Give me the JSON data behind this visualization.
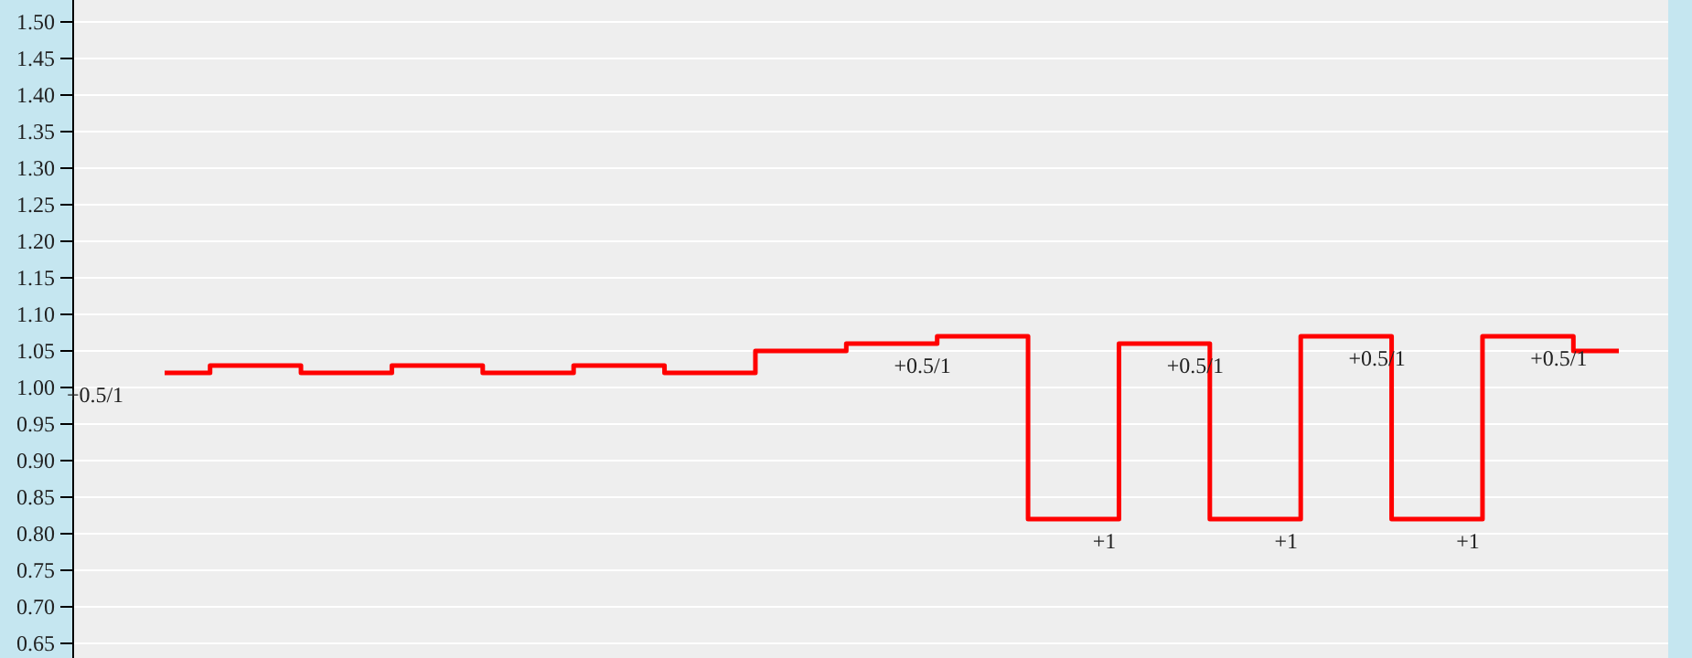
{
  "chart_data": {
    "type": "step",
    "categories": [
      null,
      null,
      null,
      null,
      null,
      null,
      null,
      null,
      null,
      null,
      null,
      null,
      null,
      null,
      null,
      null,
      null
    ],
    "series": [
      {
        "color": "#ff0000",
        "values": [
          1.02,
          1.03,
          1.02,
          1.03,
          1.02,
          1.03,
          1.02,
          1.05,
          1.06,
          1.07,
          0.82,
          1.06,
          0.82,
          1.07,
          0.82,
          1.07,
          1.05
        ],
        "value_labels": [
          "+0.5/1",
          null,
          null,
          null,
          null,
          null,
          null,
          null,
          "+0.5/1",
          null,
          "+1",
          "+0.5/1",
          "+1",
          "+0.5/1",
          "+1",
          "+0.5/1",
          null
        ]
      }
    ],
    "ylim": [
      0.63,
      1.53
    ],
    "yticks": [
      {
        "value": 0.65,
        "label": "0.65"
      },
      {
        "value": 0.7,
        "label": "0.70"
      },
      {
        "value": 0.75,
        "label": "0.75"
      },
      {
        "value": 0.8,
        "label": "0.80"
      },
      {
        "value": 0.85,
        "label": "0.85"
      },
      {
        "value": 0.9,
        "label": "0.90"
      },
      {
        "value": 0.95,
        "label": "0.95"
      },
      {
        "value": 1.0,
        "label": "1.00"
      },
      {
        "value": 1.05,
        "label": "1.05"
      },
      {
        "value": 1.1,
        "label": "1.10"
      },
      {
        "value": 1.15,
        "label": "1.15"
      },
      {
        "value": 1.2,
        "label": "1.20"
      },
      {
        "value": 1.25,
        "label": "1.25"
      },
      {
        "value": 1.3,
        "label": "1.30"
      },
      {
        "value": 1.35,
        "label": "1.35"
      },
      {
        "value": 1.4,
        "label": "1.40"
      },
      {
        "value": 1.45,
        "label": "1.45"
      },
      {
        "value": 1.5,
        "label": "1.50"
      }
    ],
    "grid": "y"
  }
}
